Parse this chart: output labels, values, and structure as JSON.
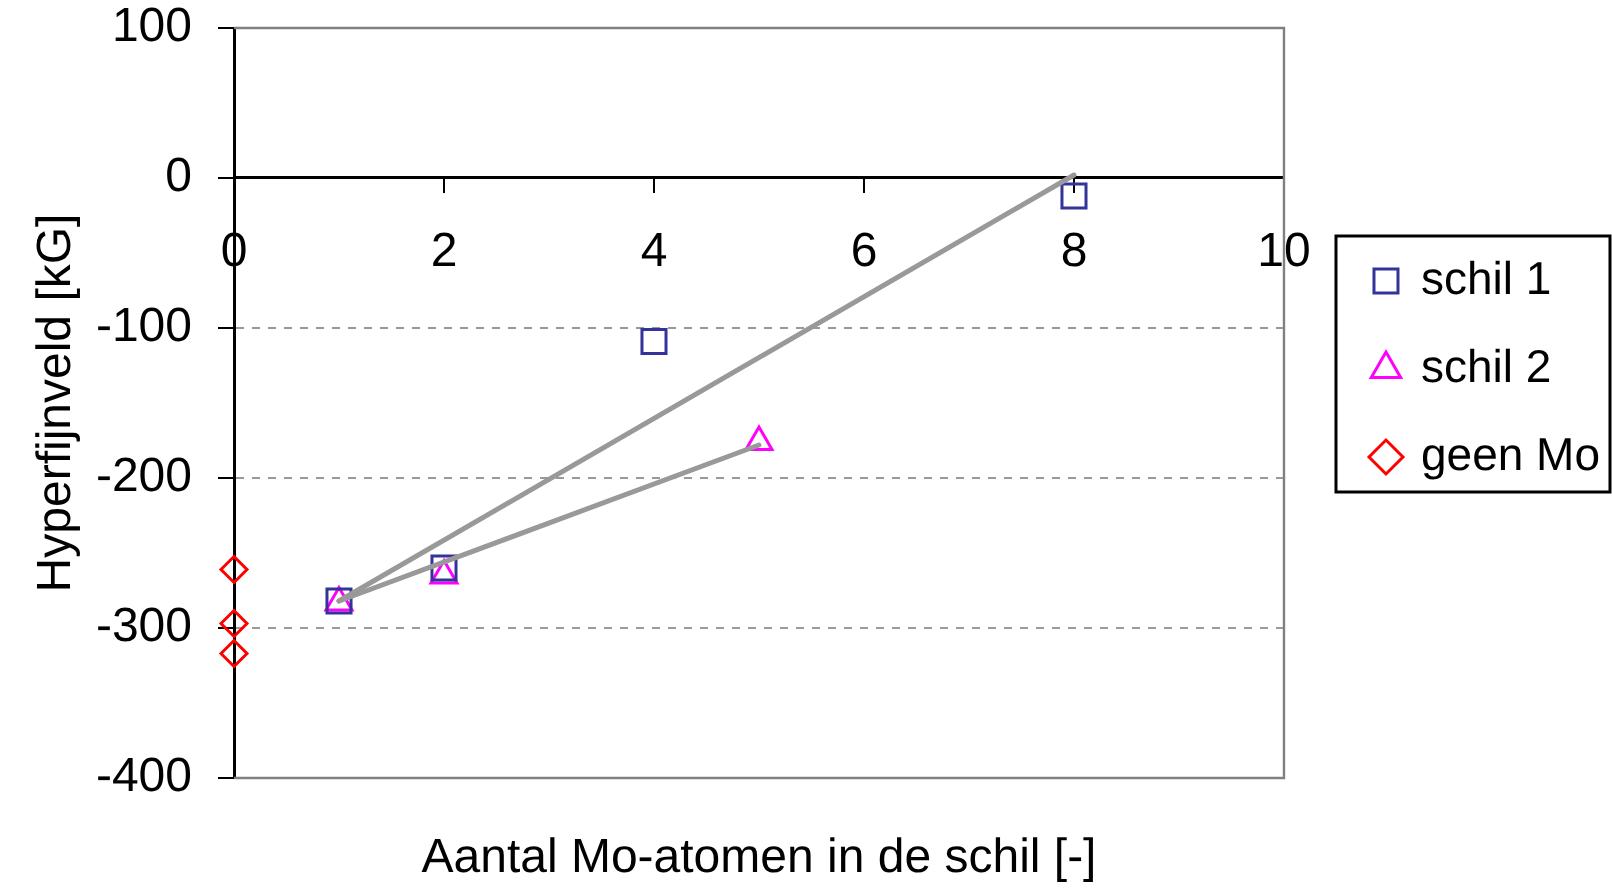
{
  "chart_data": {
    "type": "scatter",
    "xlabel": "Aantal Mo-atomen in de schil [-]",
    "ylabel": "Hyperfijnveld [kG]",
    "xlim": [
      0,
      10
    ],
    "xticks": [
      0,
      2,
      4,
      6,
      8,
      10
    ],
    "ylim": [
      -400,
      100
    ],
    "yticks": [
      -400,
      -300,
      -200,
      -100,
      0,
      100
    ],
    "grid": "y",
    "legend": "right",
    "series": [
      {
        "name": "schil 1",
        "color": "#333399",
        "marker": "square",
        "x": [
          1,
          2,
          4,
          8
        ],
        "values": [
          -282,
          -260,
          -109,
          -12
        ]
      },
      {
        "name": "schil 2",
        "color": "#ff00ff",
        "marker": "triangle",
        "x": [
          1,
          2,
          5
        ],
        "values": [
          -283,
          -265,
          -176
        ]
      },
      {
        "name": "geen Mo",
        "color": "#ff0000",
        "marker": "diamond",
        "x": [
          0,
          0,
          0
        ],
        "values": [
          -261,
          -297,
          -317
        ]
      },
      {
        "type": "line",
        "color": "#999999",
        "marker": "none",
        "x": [
          1,
          8
        ],
        "values": [
          -282,
          2
        ]
      },
      {
        "type": "line",
        "color": "#999999",
        "marker": "none",
        "x": [
          1,
          5
        ],
        "values": [
          -282,
          -178
        ]
      }
    ]
  }
}
